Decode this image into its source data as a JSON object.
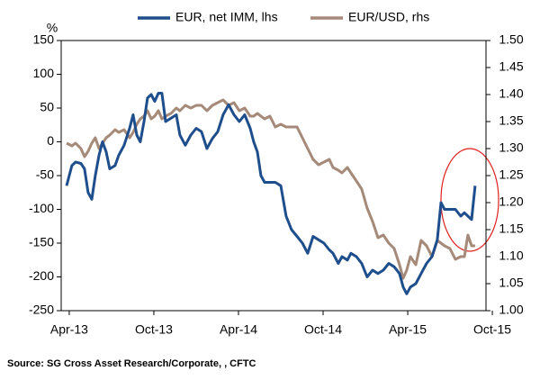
{
  "chart_data": {
    "type": "line",
    "legend": [],
    "ylabel": "%",
    "source": "Source: SG Cross Asset Research/Corporate, , CFTC",
    "xlim": [
      -0.57,
      29.55
    ],
    "xticks": [
      {
        "value": 0,
        "label": "Apr-13"
      },
      {
        "value": 6,
        "label": "Oct-13"
      },
      {
        "value": 12,
        "label": "Apr-14"
      },
      {
        "value": 18,
        "label": "Oct-14"
      },
      {
        "value": 24,
        "label": "Apr-15"
      },
      {
        "value": 30,
        "label": "Oct-15"
      }
    ],
    "ylim": [
      -250,
      150
    ],
    "yticks": [
      -250,
      -200,
      -150,
      -100,
      -50,
      0,
      50,
      100,
      150
    ],
    "y2lim": [
      1.0,
      1.5
    ],
    "y2ticks": [
      {
        "value": 1.0,
        "label": "1.00"
      },
      1.05,
      {
        "value": 1.1,
        "label": "1.10"
      },
      1.15,
      {
        "value": 1.2,
        "label": "1.20"
      },
      1.25,
      {
        "value": 1.3,
        "label": "1.30"
      },
      1.35,
      {
        "value": 1.4,
        "label": "1.40"
      },
      1.45,
      {
        "value": 1.5,
        "label": "1.50"
      }
    ],
    "x": [
      -0.19,
      0.19,
      0.45,
      0.83,
      1.08,
      1.34,
      1.6,
      1.85,
      2.11,
      2.36,
      2.62,
      2.87,
      3.25,
      3.51,
      3.89,
      4.28,
      4.53,
      4.79,
      5.04,
      5.3,
      5.55,
      5.81,
      6.06,
      6.32,
      6.57,
      6.83,
      7.21,
      7.59,
      7.85,
      8.23,
      8.62,
      9.0,
      9.38,
      9.76,
      10.15,
      10.53,
      10.91,
      11.3,
      11.68,
      12.06,
      12.44,
      12.83,
      13.08,
      13.34,
      13.59,
      13.85,
      14.23,
      14.61,
      15.0,
      15.38,
      15.76,
      16.15,
      16.53,
      16.91,
      17.29,
      17.68,
      18.06,
      18.44,
      18.7,
      19.08,
      19.34,
      19.72,
      19.97,
      20.36,
      20.74,
      21.12,
      21.51,
      21.89,
      22.27,
      22.66,
      23.04,
      23.42,
      23.68,
      23.93,
      24.19,
      24.57,
      24.95,
      25.34,
      25.72,
      26.1,
      26.36,
      26.61,
      26.99,
      27.38,
      27.76,
      28.02,
      28.27,
      28.53,
      28.78
    ],
    "series": [
      {
        "name": "EUR, net IMM, lhs",
        "color": "#1f4e8c",
        "axis": "y",
        "values": [
          -65,
          -35,
          -30,
          -32,
          -40,
          -75,
          -85,
          -50,
          -20,
          0,
          -15,
          -40,
          -35,
          -20,
          -5,
          20,
          40,
          10,
          0,
          30,
          65,
          70,
          60,
          72,
          72,
          30,
          35,
          40,
          10,
          -5,
          10,
          20,
          15,
          -10,
          5,
          15,
          40,
          55,
          40,
          30,
          40,
          20,
          0,
          -15,
          -50,
          -60,
          -60,
          -60,
          -65,
          -110,
          -130,
          -140,
          -150,
          -165,
          -140,
          -145,
          -150,
          -160,
          -165,
          -180,
          -170,
          -175,
          -165,
          -170,
          -180,
          -200,
          -190,
          -195,
          -190,
          -180,
          -185,
          -195,
          -215,
          -225,
          -215,
          -210,
          -195,
          -180,
          -170,
          -145,
          -90,
          -100,
          -100,
          -100,
          -110,
          -105,
          -110,
          -115,
          -65
        ]
      },
      {
        "name": "EUR/USD, rhs",
        "color": "#a68a79",
        "axis": "y2",
        "values": [
          1.31,
          1.305,
          1.31,
          1.3,
          1.285,
          1.295,
          1.31,
          1.32,
          1.3,
          1.31,
          1.32,
          1.325,
          1.335,
          1.33,
          1.335,
          1.32,
          1.33,
          1.345,
          1.355,
          1.36,
          1.37,
          1.355,
          1.36,
          1.37,
          1.355,
          1.36,
          1.365,
          1.375,
          1.37,
          1.38,
          1.375,
          1.38,
          1.38,
          1.37,
          1.38,
          1.385,
          1.39,
          1.38,
          1.385,
          1.37,
          1.375,
          1.36,
          1.36,
          1.365,
          1.36,
          1.355,
          1.36,
          1.34,
          1.345,
          1.34,
          1.34,
          1.34,
          1.32,
          1.3,
          1.28,
          1.27,
          1.275,
          1.28,
          1.265,
          1.26,
          1.255,
          1.265,
          1.255,
          1.24,
          1.225,
          1.19,
          1.165,
          1.135,
          1.14,
          1.125,
          1.115,
          1.085,
          1.06,
          1.075,
          1.1,
          1.085,
          1.13,
          1.12,
          1.1,
          1.13,
          1.125,
          1.12,
          1.115,
          1.095,
          1.1,
          1.1,
          1.14,
          1.12,
          1.12
        ]
      }
    ]
  }
}
